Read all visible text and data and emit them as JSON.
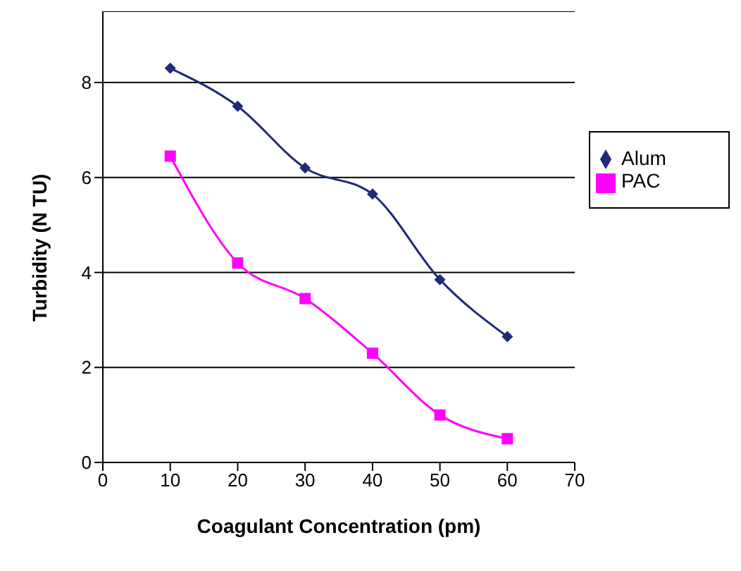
{
  "chart_data": {
    "type": "line",
    "xlabel": "Coagulant Concentration (pm)",
    "ylabel": "Turbidity (N TU)",
    "x": [
      10,
      20,
      30,
      40,
      50,
      60
    ],
    "series": [
      {
        "name": "Alum",
        "color": "#1f2a7a",
        "marker": "diamond",
        "values": [
          8.3,
          7.5,
          6.2,
          5.65,
          3.85,
          2.65
        ]
      },
      {
        "name": "PAC",
        "color": "#ff00ff",
        "marker": "square",
        "values": [
          6.45,
          4.2,
          3.45,
          2.3,
          1.0,
          0.5
        ]
      }
    ],
    "xlim": [
      0,
      70
    ],
    "xticks": [
      0,
      10,
      20,
      30,
      40,
      50,
      60,
      70
    ],
    "ylim": [
      0,
      9.5
    ],
    "yticks": [
      0,
      2,
      4,
      6,
      8
    ],
    "grid": "y",
    "legend": "right"
  }
}
